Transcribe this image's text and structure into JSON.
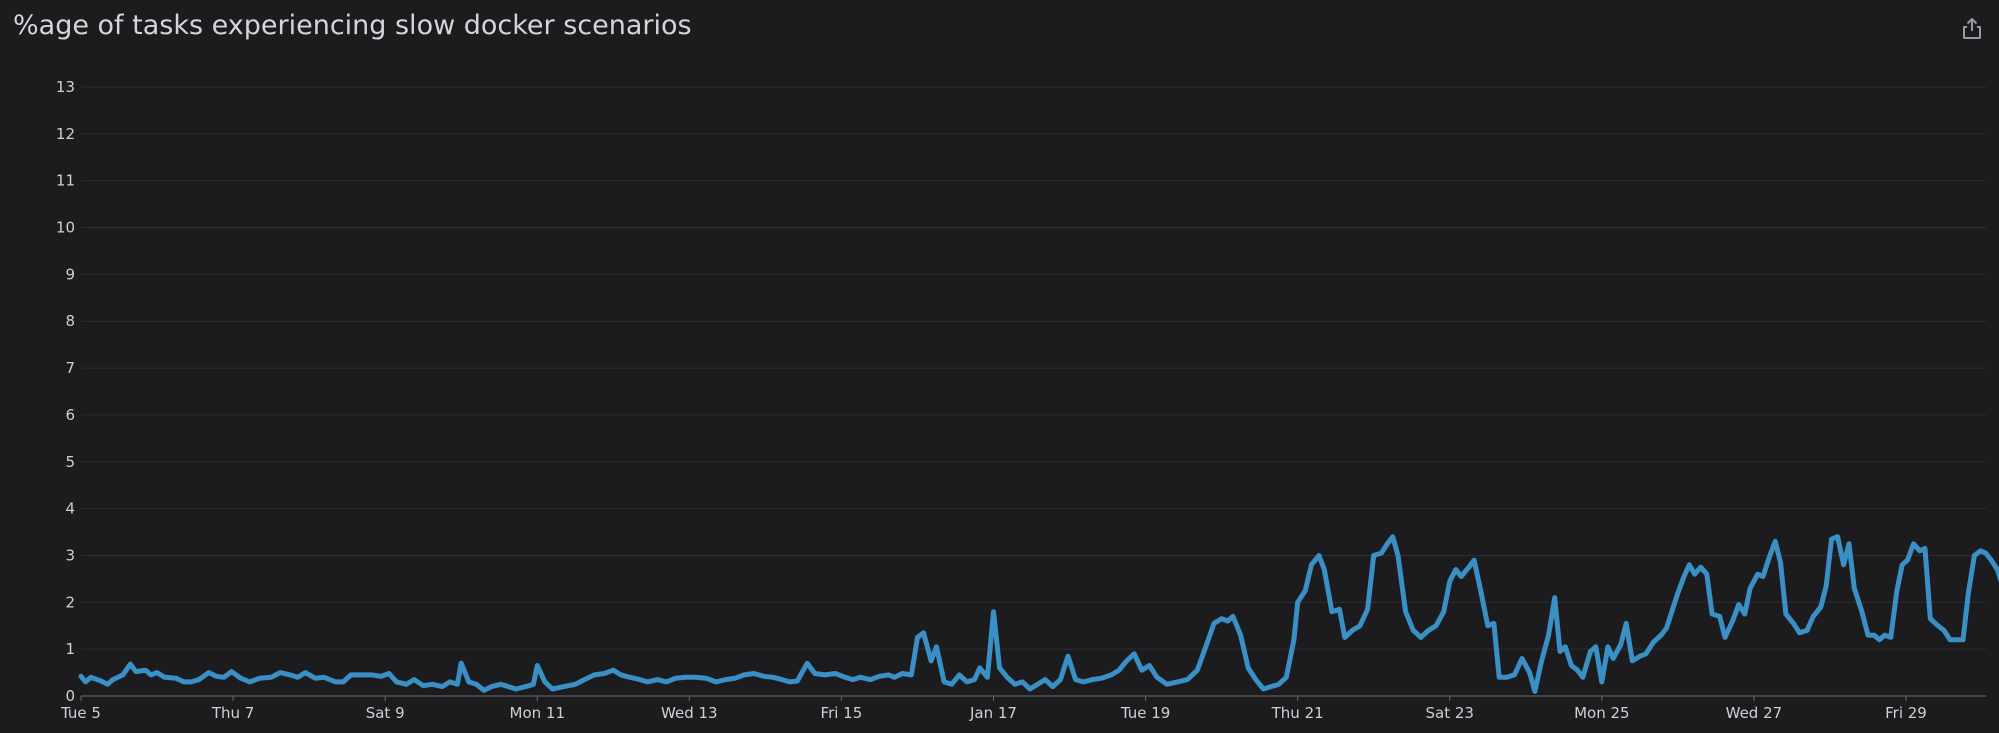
{
  "title": "%age of tasks experiencing slow docker scenarios",
  "share_icon": "share-icon",
  "colors": {
    "background": "#1c1c1f",
    "grid": "#2e2e33",
    "axis": "#6a6a70",
    "text": "#d0d0d4",
    "series": "#3a8fc4"
  },
  "chart_data": {
    "type": "line",
    "title": "%age of tasks experiencing slow docker scenarios",
    "xlabel": "",
    "ylabel": "",
    "x_unit": "days from Tue 5 (tick dates Jan 5 .. Jan 30)",
    "xlim": [
      0,
      25.0
    ],
    "ylim": [
      0,
      13
    ],
    "yticks": [
      0,
      1,
      2,
      3,
      4,
      5,
      6,
      7,
      8,
      9,
      10,
      11,
      12,
      13
    ],
    "xticks": [
      {
        "x": 0,
        "label": "Tue 5"
      },
      {
        "x": 2,
        "label": "Thu 7"
      },
      {
        "x": 4,
        "label": "Sat 9"
      },
      {
        "x": 6,
        "label": "Mon 11"
      },
      {
        "x": 8,
        "label": "Wed 13"
      },
      {
        "x": 10,
        "label": "Fri 15"
      },
      {
        "x": 12,
        "label": "Jan 17"
      },
      {
        "x": 14,
        "label": "Tue 19"
      },
      {
        "x": 16,
        "label": "Thu 21"
      },
      {
        "x": 18,
        "label": "Sat 23"
      },
      {
        "x": 20,
        "label": "Mon 25"
      },
      {
        "x": 22,
        "label": "Wed 27"
      },
      {
        "x": 24,
        "label": "Fri 29"
      }
    ],
    "grid": true,
    "legend": "none",
    "series": [
      {
        "name": "",
        "color": "#3a8fc4",
        "points": [
          [
            0.0,
            0.42
          ],
          [
            0.06,
            0.3
          ],
          [
            0.13,
            0.4
          ],
          [
            0.25,
            0.33
          ],
          [
            0.35,
            0.25
          ],
          [
            0.42,
            0.35
          ],
          [
            0.55,
            0.45
          ],
          [
            0.65,
            0.68
          ],
          [
            0.72,
            0.52
          ],
          [
            0.85,
            0.55
          ],
          [
            0.92,
            0.45
          ],
          [
            1.0,
            0.5
          ],
          [
            1.1,
            0.4
          ],
          [
            1.25,
            0.38
          ],
          [
            1.35,
            0.3
          ],
          [
            1.45,
            0.3
          ],
          [
            1.55,
            0.35
          ],
          [
            1.68,
            0.5
          ],
          [
            1.78,
            0.42
          ],
          [
            1.88,
            0.4
          ],
          [
            1.98,
            0.52
          ],
          [
            2.1,
            0.38
          ],
          [
            2.22,
            0.3
          ],
          [
            2.35,
            0.38
          ],
          [
            2.5,
            0.4
          ],
          [
            2.62,
            0.5
          ],
          [
            2.75,
            0.45
          ],
          [
            2.85,
            0.4
          ],
          [
            2.95,
            0.5
          ],
          [
            3.08,
            0.38
          ],
          [
            3.2,
            0.4
          ],
          [
            3.35,
            0.3
          ],
          [
            3.45,
            0.3
          ],
          [
            3.55,
            0.45
          ],
          [
            3.7,
            0.45
          ],
          [
            3.82,
            0.45
          ],
          [
            3.95,
            0.42
          ],
          [
            4.05,
            0.48
          ],
          [
            4.15,
            0.3
          ],
          [
            4.28,
            0.25
          ],
          [
            4.38,
            0.35
          ],
          [
            4.5,
            0.22
          ],
          [
            4.62,
            0.25
          ],
          [
            4.75,
            0.2
          ],
          [
            4.85,
            0.3
          ],
          [
            4.95,
            0.25
          ],
          [
            5.0,
            0.7
          ],
          [
            5.1,
            0.3
          ],
          [
            5.2,
            0.25
          ],
          [
            5.3,
            0.12
          ],
          [
            5.4,
            0.2
          ],
          [
            5.52,
            0.25
          ],
          [
            5.62,
            0.2
          ],
          [
            5.72,
            0.15
          ],
          [
            5.85,
            0.2
          ],
          [
            5.95,
            0.25
          ],
          [
            6.0,
            0.65
          ],
          [
            6.1,
            0.3
          ],
          [
            6.2,
            0.15
          ],
          [
            6.35,
            0.2
          ],
          [
            6.5,
            0.25
          ],
          [
            6.62,
            0.35
          ],
          [
            6.75,
            0.45
          ],
          [
            6.88,
            0.48
          ],
          [
            7.0,
            0.55
          ],
          [
            7.1,
            0.45
          ],
          [
            7.22,
            0.4
          ],
          [
            7.35,
            0.35
          ],
          [
            7.45,
            0.3
          ],
          [
            7.58,
            0.35
          ],
          [
            7.7,
            0.3
          ],
          [
            7.82,
            0.38
          ],
          [
            7.95,
            0.4
          ],
          [
            8.08,
            0.4
          ],
          [
            8.22,
            0.38
          ],
          [
            8.35,
            0.3
          ],
          [
            8.48,
            0.35
          ],
          [
            8.6,
            0.38
          ],
          [
            8.72,
            0.45
          ],
          [
            8.85,
            0.48
          ],
          [
            8.98,
            0.42
          ],
          [
            9.1,
            0.4
          ],
          [
            9.22,
            0.35
          ],
          [
            9.32,
            0.3
          ],
          [
            9.42,
            0.32
          ],
          [
            9.55,
            0.7
          ],
          [
            9.65,
            0.48
          ],
          [
            9.78,
            0.45
          ],
          [
            9.92,
            0.48
          ],
          [
            10.05,
            0.4
          ],
          [
            10.15,
            0.35
          ],
          [
            10.25,
            0.4
          ],
          [
            10.38,
            0.35
          ],
          [
            10.5,
            0.42
          ],
          [
            10.62,
            0.45
          ],
          [
            10.7,
            0.4
          ],
          [
            10.8,
            0.48
          ],
          [
            10.92,
            0.45
          ],
          [
            11.0,
            1.25
          ],
          [
            11.08,
            1.35
          ],
          [
            11.18,
            0.75
          ],
          [
            11.25,
            1.05
          ],
          [
            11.35,
            0.3
          ],
          [
            11.45,
            0.25
          ],
          [
            11.55,
            0.45
          ],
          [
            11.65,
            0.3
          ],
          [
            11.75,
            0.35
          ],
          [
            11.82,
            0.6
          ],
          [
            11.92,
            0.4
          ],
          [
            12.0,
            1.8
          ],
          [
            12.08,
            0.6
          ],
          [
            12.18,
            0.4
          ],
          [
            12.28,
            0.25
          ],
          [
            12.38,
            0.3
          ],
          [
            12.48,
            0.15
          ],
          [
            12.58,
            0.25
          ],
          [
            12.68,
            0.35
          ],
          [
            12.78,
            0.2
          ],
          [
            12.88,
            0.35
          ],
          [
            12.98,
            0.85
          ],
          [
            13.08,
            0.35
          ],
          [
            13.18,
            0.3
          ],
          [
            13.3,
            0.35
          ],
          [
            13.42,
            0.38
          ],
          [
            13.55,
            0.45
          ],
          [
            13.65,
            0.55
          ],
          [
            13.75,
            0.75
          ],
          [
            13.85,
            0.9
          ],
          [
            13.95,
            0.55
          ],
          [
            14.05,
            0.65
          ],
          [
            14.15,
            0.4
          ],
          [
            14.28,
            0.25
          ],
          [
            14.42,
            0.3
          ],
          [
            14.55,
            0.35
          ],
          [
            14.68,
            0.55
          ],
          [
            14.78,
            1.0
          ],
          [
            14.9,
            1.55
          ],
          [
            15.0,
            1.65
          ],
          [
            15.08,
            1.6
          ],
          [
            15.15,
            1.7
          ],
          [
            15.25,
            1.3
          ],
          [
            15.35,
            0.6
          ],
          [
            15.45,
            0.35
          ],
          [
            15.55,
            0.15
          ],
          [
            15.65,
            0.2
          ],
          [
            15.75,
            0.25
          ],
          [
            15.85,
            0.4
          ],
          [
            15.95,
            1.2
          ],
          [
            16.0,
            2.0
          ],
          [
            16.1,
            2.25
          ],
          [
            16.18,
            2.8
          ],
          [
            16.28,
            3.0
          ],
          [
            16.35,
            2.7
          ],
          [
            16.45,
            1.8
          ],
          [
            16.55,
            1.85
          ],
          [
            16.62,
            1.25
          ],
          [
            16.72,
            1.4
          ],
          [
            16.82,
            1.5
          ],
          [
            16.92,
            1.85
          ],
          [
            17.0,
            3.0
          ],
          [
            17.1,
            3.05
          ],
          [
            17.18,
            3.25
          ],
          [
            17.25,
            3.4
          ],
          [
            17.32,
            3.0
          ],
          [
            17.42,
            1.8
          ],
          [
            17.52,
            1.4
          ],
          [
            17.62,
            1.25
          ],
          [
            17.72,
            1.4
          ],
          [
            17.82,
            1.5
          ],
          [
            17.92,
            1.8
          ],
          [
            18.0,
            2.45
          ],
          [
            18.08,
            2.7
          ],
          [
            18.15,
            2.55
          ],
          [
            18.25,
            2.75
          ],
          [
            18.32,
            2.9
          ],
          [
            18.4,
            2.3
          ],
          [
            18.5,
            1.5
          ],
          [
            18.58,
            1.55
          ],
          [
            18.65,
            0.4
          ],
          [
            18.75,
            0.4
          ],
          [
            18.85,
            0.45
          ],
          [
            18.95,
            0.8
          ],
          [
            19.05,
            0.5
          ],
          [
            19.12,
            0.1
          ],
          [
            19.2,
            0.7
          ],
          [
            19.3,
            1.3
          ],
          [
            19.38,
            2.1
          ],
          [
            19.45,
            0.95
          ],
          [
            19.52,
            1.05
          ],
          [
            19.6,
            0.65
          ],
          [
            19.68,
            0.55
          ],
          [
            19.75,
            0.4
          ],
          [
            19.85,
            0.95
          ],
          [
            19.92,
            1.05
          ],
          [
            20.0,
            0.3
          ],
          [
            20.08,
            1.05
          ],
          [
            20.15,
            0.8
          ],
          [
            20.25,
            1.1
          ],
          [
            20.32,
            1.55
          ],
          [
            20.4,
            0.75
          ],
          [
            20.5,
            0.85
          ],
          [
            20.58,
            0.9
          ],
          [
            20.68,
            1.15
          ],
          [
            20.78,
            1.3
          ],
          [
            20.85,
            1.45
          ],
          [
            20.92,
            1.8
          ],
          [
            21.0,
            2.2
          ],
          [
            21.08,
            2.55
          ],
          [
            21.15,
            2.8
          ],
          [
            21.22,
            2.6
          ],
          [
            21.3,
            2.75
          ],
          [
            21.38,
            2.6
          ],
          [
            21.45,
            1.75
          ],
          [
            21.55,
            1.7
          ],
          [
            21.62,
            1.25
          ],
          [
            21.72,
            1.6
          ],
          [
            21.8,
            1.95
          ],
          [
            21.88,
            1.75
          ],
          [
            21.95,
            2.3
          ],
          [
            22.05,
            2.6
          ],
          [
            22.12,
            2.55
          ],
          [
            22.2,
            2.95
          ],
          [
            22.28,
            3.3
          ],
          [
            22.35,
            2.85
          ],
          [
            22.42,
            1.75
          ],
          [
            22.52,
            1.55
          ],
          [
            22.6,
            1.35
          ],
          [
            22.7,
            1.4
          ],
          [
            22.78,
            1.7
          ],
          [
            22.88,
            1.9
          ],
          [
            22.95,
            2.35
          ],
          [
            23.02,
            3.35
          ],
          [
            23.1,
            3.4
          ],
          [
            23.18,
            2.8
          ],
          [
            23.25,
            3.25
          ],
          [
            23.32,
            2.3
          ],
          [
            23.42,
            1.8
          ],
          [
            23.5,
            1.3
          ],
          [
            23.58,
            1.3
          ],
          [
            23.65,
            1.2
          ],
          [
            23.72,
            1.3
          ],
          [
            23.8,
            1.25
          ],
          [
            23.88,
            2.25
          ],
          [
            23.95,
            2.8
          ],
          [
            24.02,
            2.9
          ],
          [
            24.1,
            3.25
          ],
          [
            24.18,
            3.1
          ],
          [
            24.25,
            3.15
          ],
          [
            24.32,
            1.65
          ],
          [
            24.42,
            1.5
          ],
          [
            24.5,
            1.4
          ],
          [
            24.58,
            1.2
          ],
          [
            24.68,
            1.2
          ],
          [
            24.75,
            1.2
          ],
          [
            24.82,
            2.2
          ],
          [
            24.9,
            3.0
          ],
          [
            24.98,
            3.1
          ],
          [
            25.05,
            3.05
          ],
          [
            25.12,
            2.9
          ],
          [
            25.2,
            2.7
          ],
          [
            25.25,
            2.45
          ]
        ]
      }
    ]
  }
}
